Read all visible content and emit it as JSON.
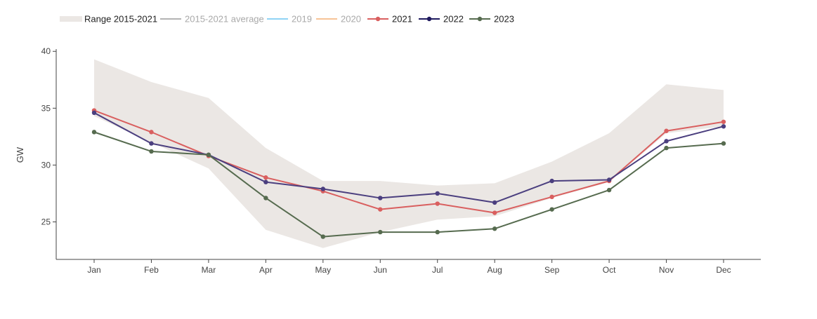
{
  "chart_data": {
    "type": "line",
    "title": "",
    "xlabel": "",
    "ylabel": "GW",
    "categories": [
      "Jan",
      "Feb",
      "Mar",
      "Apr",
      "May",
      "Jun",
      "Jul",
      "Aug",
      "Sep",
      "Oct",
      "Nov",
      "Dec"
    ],
    "ylim": [
      21.7,
      40.2
    ],
    "yticks": [
      25,
      30,
      35,
      40
    ],
    "grid": false,
    "legend_position": "top-left",
    "range_band": {
      "name": "Range 2015-2021",
      "color": "#ebe7e4",
      "lower": [
        34.3,
        32.0,
        29.7,
        24.3,
        22.7,
        24.1,
        25.2,
        25.5,
        27.1,
        28.5,
        32.8,
        33.4
      ],
      "upper": [
        39.3,
        37.3,
        35.9,
        31.5,
        28.6,
        28.6,
        28.2,
        28.4,
        30.3,
        32.8,
        37.1,
        36.6
      ]
    },
    "legend": [
      {
        "name": "Range 2015-2021",
        "color": "#ebe7e4",
        "kind": "band",
        "muted": false
      },
      {
        "name": "2015-2021 average",
        "color": "#b3b3b3",
        "kind": "line",
        "muted": true
      },
      {
        "name": "2019",
        "color": "#8fd3f5",
        "kind": "line",
        "muted": true
      },
      {
        "name": "2020",
        "color": "#f7c396",
        "kind": "line",
        "muted": true
      },
      {
        "name": "2021",
        "color": "#d95f5f",
        "kind": "marker-line",
        "muted": false
      },
      {
        "name": "2022",
        "color": "#1f1a5e",
        "kind": "marker-line",
        "muted": false
      },
      {
        "name": "2023",
        "color": "#566b4f",
        "kind": "marker-line",
        "muted": false
      }
    ],
    "series": [
      {
        "name": "2021",
        "color": "#d95f5f",
        "values": [
          34.8,
          32.9,
          30.8,
          28.9,
          27.7,
          26.1,
          26.6,
          25.8,
          27.2,
          28.6,
          33.0,
          33.8
        ]
      },
      {
        "name": "2022",
        "color": "#4b3f7f",
        "values": [
          34.6,
          31.9,
          30.9,
          28.5,
          27.9,
          27.1,
          27.5,
          26.7,
          28.6,
          28.7,
          32.1,
          33.4
        ]
      },
      {
        "name": "2023",
        "color": "#566b4f",
        "values": [
          32.9,
          31.2,
          30.9,
          27.1,
          23.7,
          24.1,
          24.1,
          24.4,
          26.1,
          27.8,
          31.5,
          31.9
        ]
      }
    ]
  }
}
